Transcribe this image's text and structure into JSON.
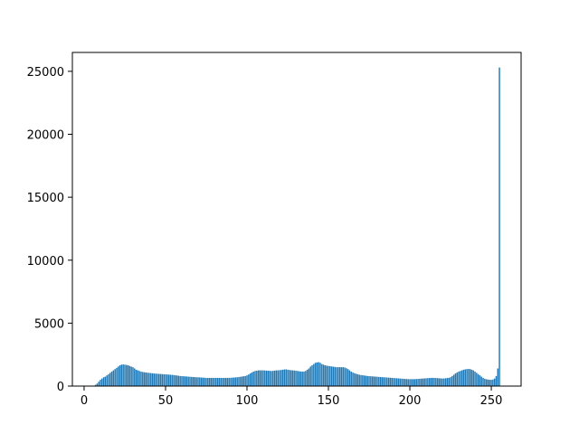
{
  "chart_data": {
    "type": "bar",
    "color": "#1f77b4",
    "x": [
      0,
      1,
      2,
      3,
      4,
      5,
      6,
      7,
      8,
      9,
      10,
      11,
      12,
      13,
      14,
      15,
      16,
      17,
      18,
      19,
      20,
      21,
      22,
      23,
      24,
      25,
      26,
      27,
      28,
      29,
      30,
      31,
      32,
      33,
      34,
      35,
      36,
      37,
      38,
      39,
      40,
      41,
      42,
      43,
      44,
      45,
      46,
      47,
      48,
      49,
      50,
      51,
      52,
      53,
      54,
      55,
      56,
      57,
      58,
      59,
      60,
      61,
      62,
      63,
      64,
      65,
      66,
      67,
      68,
      69,
      70,
      71,
      72,
      73,
      74,
      75,
      76,
      77,
      78,
      79,
      80,
      81,
      82,
      83,
      84,
      85,
      86,
      87,
      88,
      89,
      90,
      91,
      92,
      93,
      94,
      95,
      96,
      97,
      98,
      99,
      100,
      101,
      102,
      103,
      104,
      105,
      106,
      107,
      108,
      109,
      110,
      111,
      112,
      113,
      114,
      115,
      116,
      117,
      118,
      119,
      120,
      121,
      122,
      123,
      124,
      125,
      126,
      127,
      128,
      129,
      130,
      131,
      132,
      133,
      134,
      135,
      136,
      137,
      138,
      139,
      140,
      141,
      142,
      143,
      144,
      145,
      146,
      147,
      148,
      149,
      150,
      151,
      152,
      153,
      154,
      155,
      156,
      157,
      158,
      159,
      160,
      161,
      162,
      163,
      164,
      165,
      166,
      167,
      168,
      169,
      170,
      171,
      172,
      173,
      174,
      175,
      176,
      177,
      178,
      179,
      180,
      181,
      182,
      183,
      184,
      185,
      186,
      187,
      188,
      189,
      190,
      191,
      192,
      193,
      194,
      195,
      196,
      197,
      198,
      199,
      200,
      201,
      202,
      203,
      204,
      205,
      206,
      207,
      208,
      209,
      210,
      211,
      212,
      213,
      214,
      215,
      216,
      217,
      218,
      219,
      220,
      221,
      222,
      223,
      224,
      225,
      226,
      227,
      228,
      229,
      230,
      231,
      232,
      233,
      234,
      235,
      236,
      237,
      238,
      239,
      240,
      241,
      242,
      243,
      244,
      245,
      246,
      247,
      248,
      249,
      250,
      251,
      252,
      253,
      254,
      255
    ],
    "values": [
      0,
      0,
      0,
      0,
      0,
      0,
      0,
      100,
      200,
      350,
      500,
      600,
      700,
      750,
      850,
      950,
      1050,
      1150,
      1250,
      1350,
      1450,
      1550,
      1650,
      1700,
      1720,
      1700,
      1680,
      1650,
      1600,
      1550,
      1500,
      1400,
      1300,
      1250,
      1200,
      1150,
      1120,
      1100,
      1080,
      1060,
      1050,
      1030,
      1020,
      1000,
      990,
      980,
      970,
      960,
      950,
      940,
      930,
      920,
      910,
      900,
      890,
      880,
      860,
      840,
      820,
      800,
      790,
      780,
      770,
      760,
      750,
      740,
      730,
      720,
      710,
      700,
      700,
      690,
      680,
      670,
      660,
      650,
      650,
      650,
      650,
      650,
      650,
      650,
      650,
      650,
      650,
      650,
      650,
      650,
      650,
      650,
      660,
      670,
      680,
      690,
      700,
      720,
      740,
      760,
      780,
      800,
      850,
      920,
      1000,
      1080,
      1150,
      1200,
      1220,
      1250,
      1250,
      1250,
      1250,
      1240,
      1230,
      1220,
      1210,
      1200,
      1210,
      1230,
      1250,
      1250,
      1260,
      1280,
      1300,
      1320,
      1330,
      1300,
      1280,
      1260,
      1250,
      1240,
      1220,
      1200,
      1180,
      1160,
      1150,
      1160,
      1200,
      1300,
      1400,
      1550,
      1650,
      1750,
      1850,
      1880,
      1900,
      1850,
      1750,
      1700,
      1650,
      1620,
      1600,
      1580,
      1560,
      1540,
      1520,
      1500,
      1500,
      1500,
      1500,
      1500,
      1480,
      1420,
      1350,
      1250,
      1150,
      1080,
      1020,
      980,
      940,
      900,
      880,
      860,
      840,
      820,
      800,
      790,
      780,
      770,
      760,
      750,
      740,
      730,
      720,
      710,
      700,
      690,
      680,
      670,
      660,
      650,
      640,
      630,
      620,
      610,
      600,
      590,
      580,
      570,
      560,
      550,
      550,
      550,
      550,
      550,
      560,
      570,
      580,
      590,
      600,
      610,
      620,
      630,
      640,
      650,
      650,
      650,
      640,
      630,
      620,
      610,
      600,
      610,
      620,
      640,
      660,
      700,
      800,
      900,
      1000,
      1080,
      1150,
      1200,
      1250,
      1300,
      1330,
      1350,
      1360,
      1350,
      1300,
      1250,
      1150,
      1050,
      950,
      850,
      750,
      650,
      580,
      540,
      520,
      500,
      500,
      520,
      600,
      800,
      1400,
      25300
    ],
    "xlim": [
      -7.2,
      268.3
    ],
    "xticks": [
      0,
      50,
      100,
      150,
      200,
      250
    ],
    "ylim": [
      0,
      26500
    ],
    "yticks": [
      0,
      5000,
      10000,
      15000,
      20000,
      25000
    ]
  }
}
